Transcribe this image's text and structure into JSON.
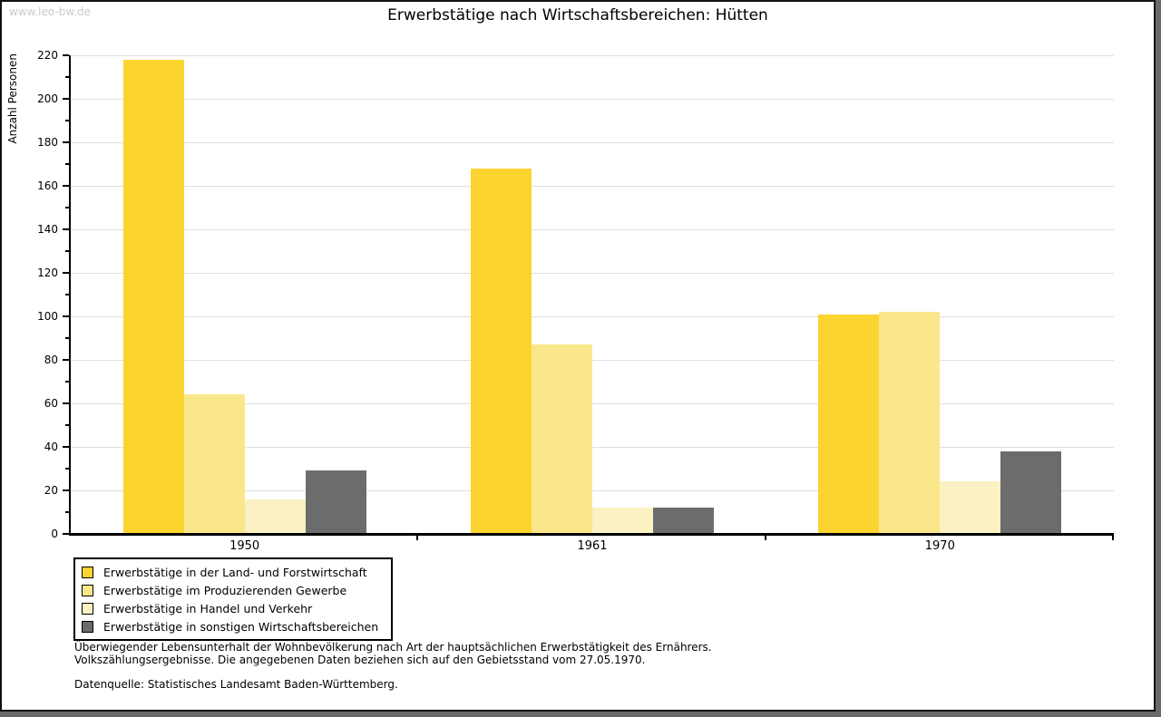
{
  "watermark": "www.leo-bw.de",
  "title": "Erwerbstätige nach Wirtschaftsbereichen: Hütten",
  "chart_data": {
    "type": "bar",
    "title": "Erwerbstätige nach Wirtschaftsbereichen: Hütten",
    "ylabel": "Anzahl Personen",
    "xlabel": "",
    "categories": [
      "1950",
      "1961",
      "1970"
    ],
    "series": [
      {
        "name": "Erwerbstätige in der Land- und Forstwirtschaft",
        "color": "#FCD42F",
        "values": [
          218,
          168,
          101
        ]
      },
      {
        "name": "Erwerbstätige im Produzierenden Gewerbe",
        "color": "#FAE78C",
        "values": [
          64,
          87,
          102
        ]
      },
      {
        "name": "Erwerbstätige in Handel und Verkehr",
        "color": "#FBF1C2",
        "values": [
          16,
          12,
          24
        ]
      },
      {
        "name": "Erwerbstätige in sonstigen Wirtschaftsbereichen",
        "color": "#6C6C6C",
        "values": [
          29,
          12,
          38
        ]
      }
    ],
    "ylim": [
      0,
      220
    ],
    "ytick_step": 20,
    "minor_tick_step": 10,
    "grid": "horizontal-major",
    "legend_position": "bottom-left-boxed"
  },
  "footer": {
    "note_line1": "Überwiegender Lebensunterhalt der Wohnbevölkerung nach Art der hauptsächlichen Erwerbstätigkeit des Ernährers.",
    "note_line2": "Volkszählungsergebnisse. Die angegebenen Daten beziehen sich auf den Gebietsstand vom 27.05.1970.",
    "source": "Datenquelle: Statistisches Landesamt Baden-Württemberg."
  },
  "colors": {
    "grid": "#DFDFDF",
    "axis": "#000000",
    "watermark": "#C9C9C9",
    "background": "#FFFFFF"
  }
}
